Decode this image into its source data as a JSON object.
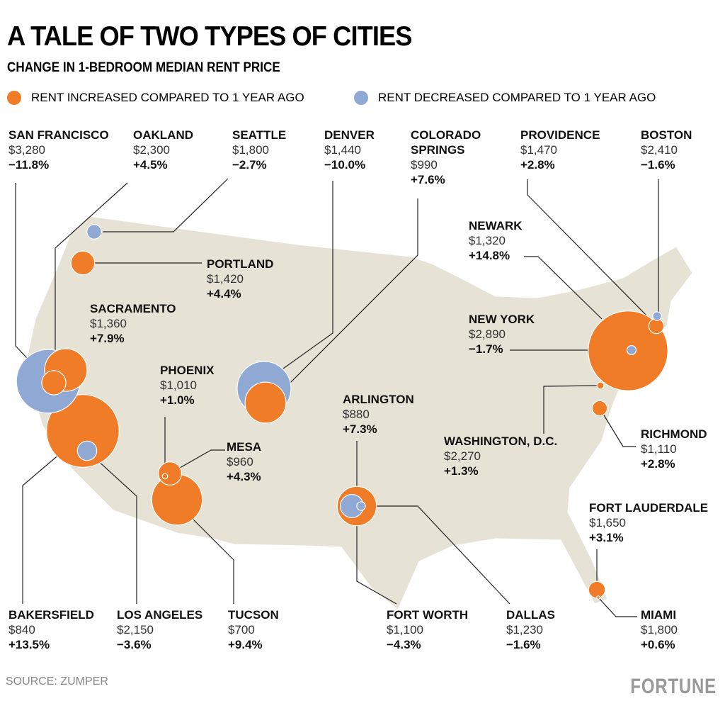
{
  "header": {
    "title": "A TALE OF TWO TYPES OF CITIES",
    "subtitle": "CHANGE IN 1-BEDROOM MEDIAN RENT PRICE"
  },
  "legend": [
    {
      "label": "RENT INCREASED COMPARED TO 1 YEAR AGO",
      "color": "#f07c28"
    },
    {
      "label": "RENT DECREASED COMPARED TO 1 YEAR AGO",
      "color": "#8fa8d4"
    }
  ],
  "cities": [
    {
      "name": "SAN FRANCISCO",
      "rent": "$3,280",
      "change": {
        "value": -11.8,
        "label": "−11.8%"
      }
    },
    {
      "name": "OAKLAND",
      "rent": "$2,300",
      "change": {
        "value": 4.5,
        "label": "+4.5%"
      }
    },
    {
      "name": "SEATTLE",
      "rent": "$1,800",
      "change": {
        "value": -2.7,
        "label": "−2.7%"
      }
    },
    {
      "name": "DENVER",
      "rent": "$1,440",
      "change": {
        "value": -10.0,
        "label": "−10.0%"
      }
    },
    {
      "name": "COLORADO SPRINGS",
      "rent": "$990",
      "change": {
        "value": 7.6,
        "label": "+7.6%"
      }
    },
    {
      "name": "PROVIDENCE",
      "rent": "$1,470",
      "change": {
        "value": 2.8,
        "label": "+2.8%"
      }
    },
    {
      "name": "BOSTON",
      "rent": "$2,410",
      "change": {
        "value": -1.6,
        "label": "−1.6%"
      }
    },
    {
      "name": "PORTLAND",
      "rent": "$1,420",
      "change": {
        "value": 4.4,
        "label": "+4.4%"
      }
    },
    {
      "name": "NEWARK",
      "rent": "$1,320",
      "change": {
        "value": 14.8,
        "label": "+14.8%"
      }
    },
    {
      "name": "NEW YORK",
      "rent": "$2,890",
      "change": {
        "value": -1.7,
        "label": "−1.7%"
      }
    },
    {
      "name": "SACRAMENTO",
      "rent": "$1,360",
      "change": {
        "value": 7.9,
        "label": "+7.9%"
      }
    },
    {
      "name": "PHOENIX",
      "rent": "$1,010",
      "change": {
        "value": 1.0,
        "label": "+1.0%"
      }
    },
    {
      "name": "MESA",
      "rent": "$960",
      "change": {
        "value": 4.3,
        "label": "+4.3%"
      }
    },
    {
      "name": "ARLINGTON",
      "rent": "$880",
      "change": {
        "value": 7.3,
        "label": "+7.3%"
      }
    },
    {
      "name": "WASHINGTON, D.C.",
      "rent": "$2,270",
      "change": {
        "value": 1.3,
        "label": "+1.3%"
      }
    },
    {
      "name": "RICHMOND",
      "rent": "$1,110",
      "change": {
        "value": 2.8,
        "label": "+2.8%"
      }
    },
    {
      "name": "FORT LAUDERDALE",
      "rent": "$1,650",
      "change": {
        "value": 3.1,
        "label": "+3.1%"
      }
    },
    {
      "name": "BAKERSFIELD",
      "rent": "$840",
      "change": {
        "value": 13.5,
        "label": "+13.5%"
      }
    },
    {
      "name": "LOS ANGELES",
      "rent": "$2,150",
      "change": {
        "value": -3.6,
        "label": "−3.6%"
      }
    },
    {
      "name": "TUCSON",
      "rent": "$700",
      "change": {
        "value": 9.4,
        "label": "+9.4%"
      }
    },
    {
      "name": "FORT WORTH",
      "rent": "$1,100",
      "change": {
        "value": -4.3,
        "label": "−4.3%"
      }
    },
    {
      "name": "DALLAS",
      "rent": "$1,230",
      "change": {
        "value": -1.6,
        "label": "−1.6%"
      }
    },
    {
      "name": "MIAMI",
      "rent": "$1,800",
      "change": {
        "value": 0.6,
        "label": "+0.6%"
      }
    }
  ],
  "footer": {
    "source": "SOURCE: ZUMPER",
    "brand": "FORTUNE"
  }
}
